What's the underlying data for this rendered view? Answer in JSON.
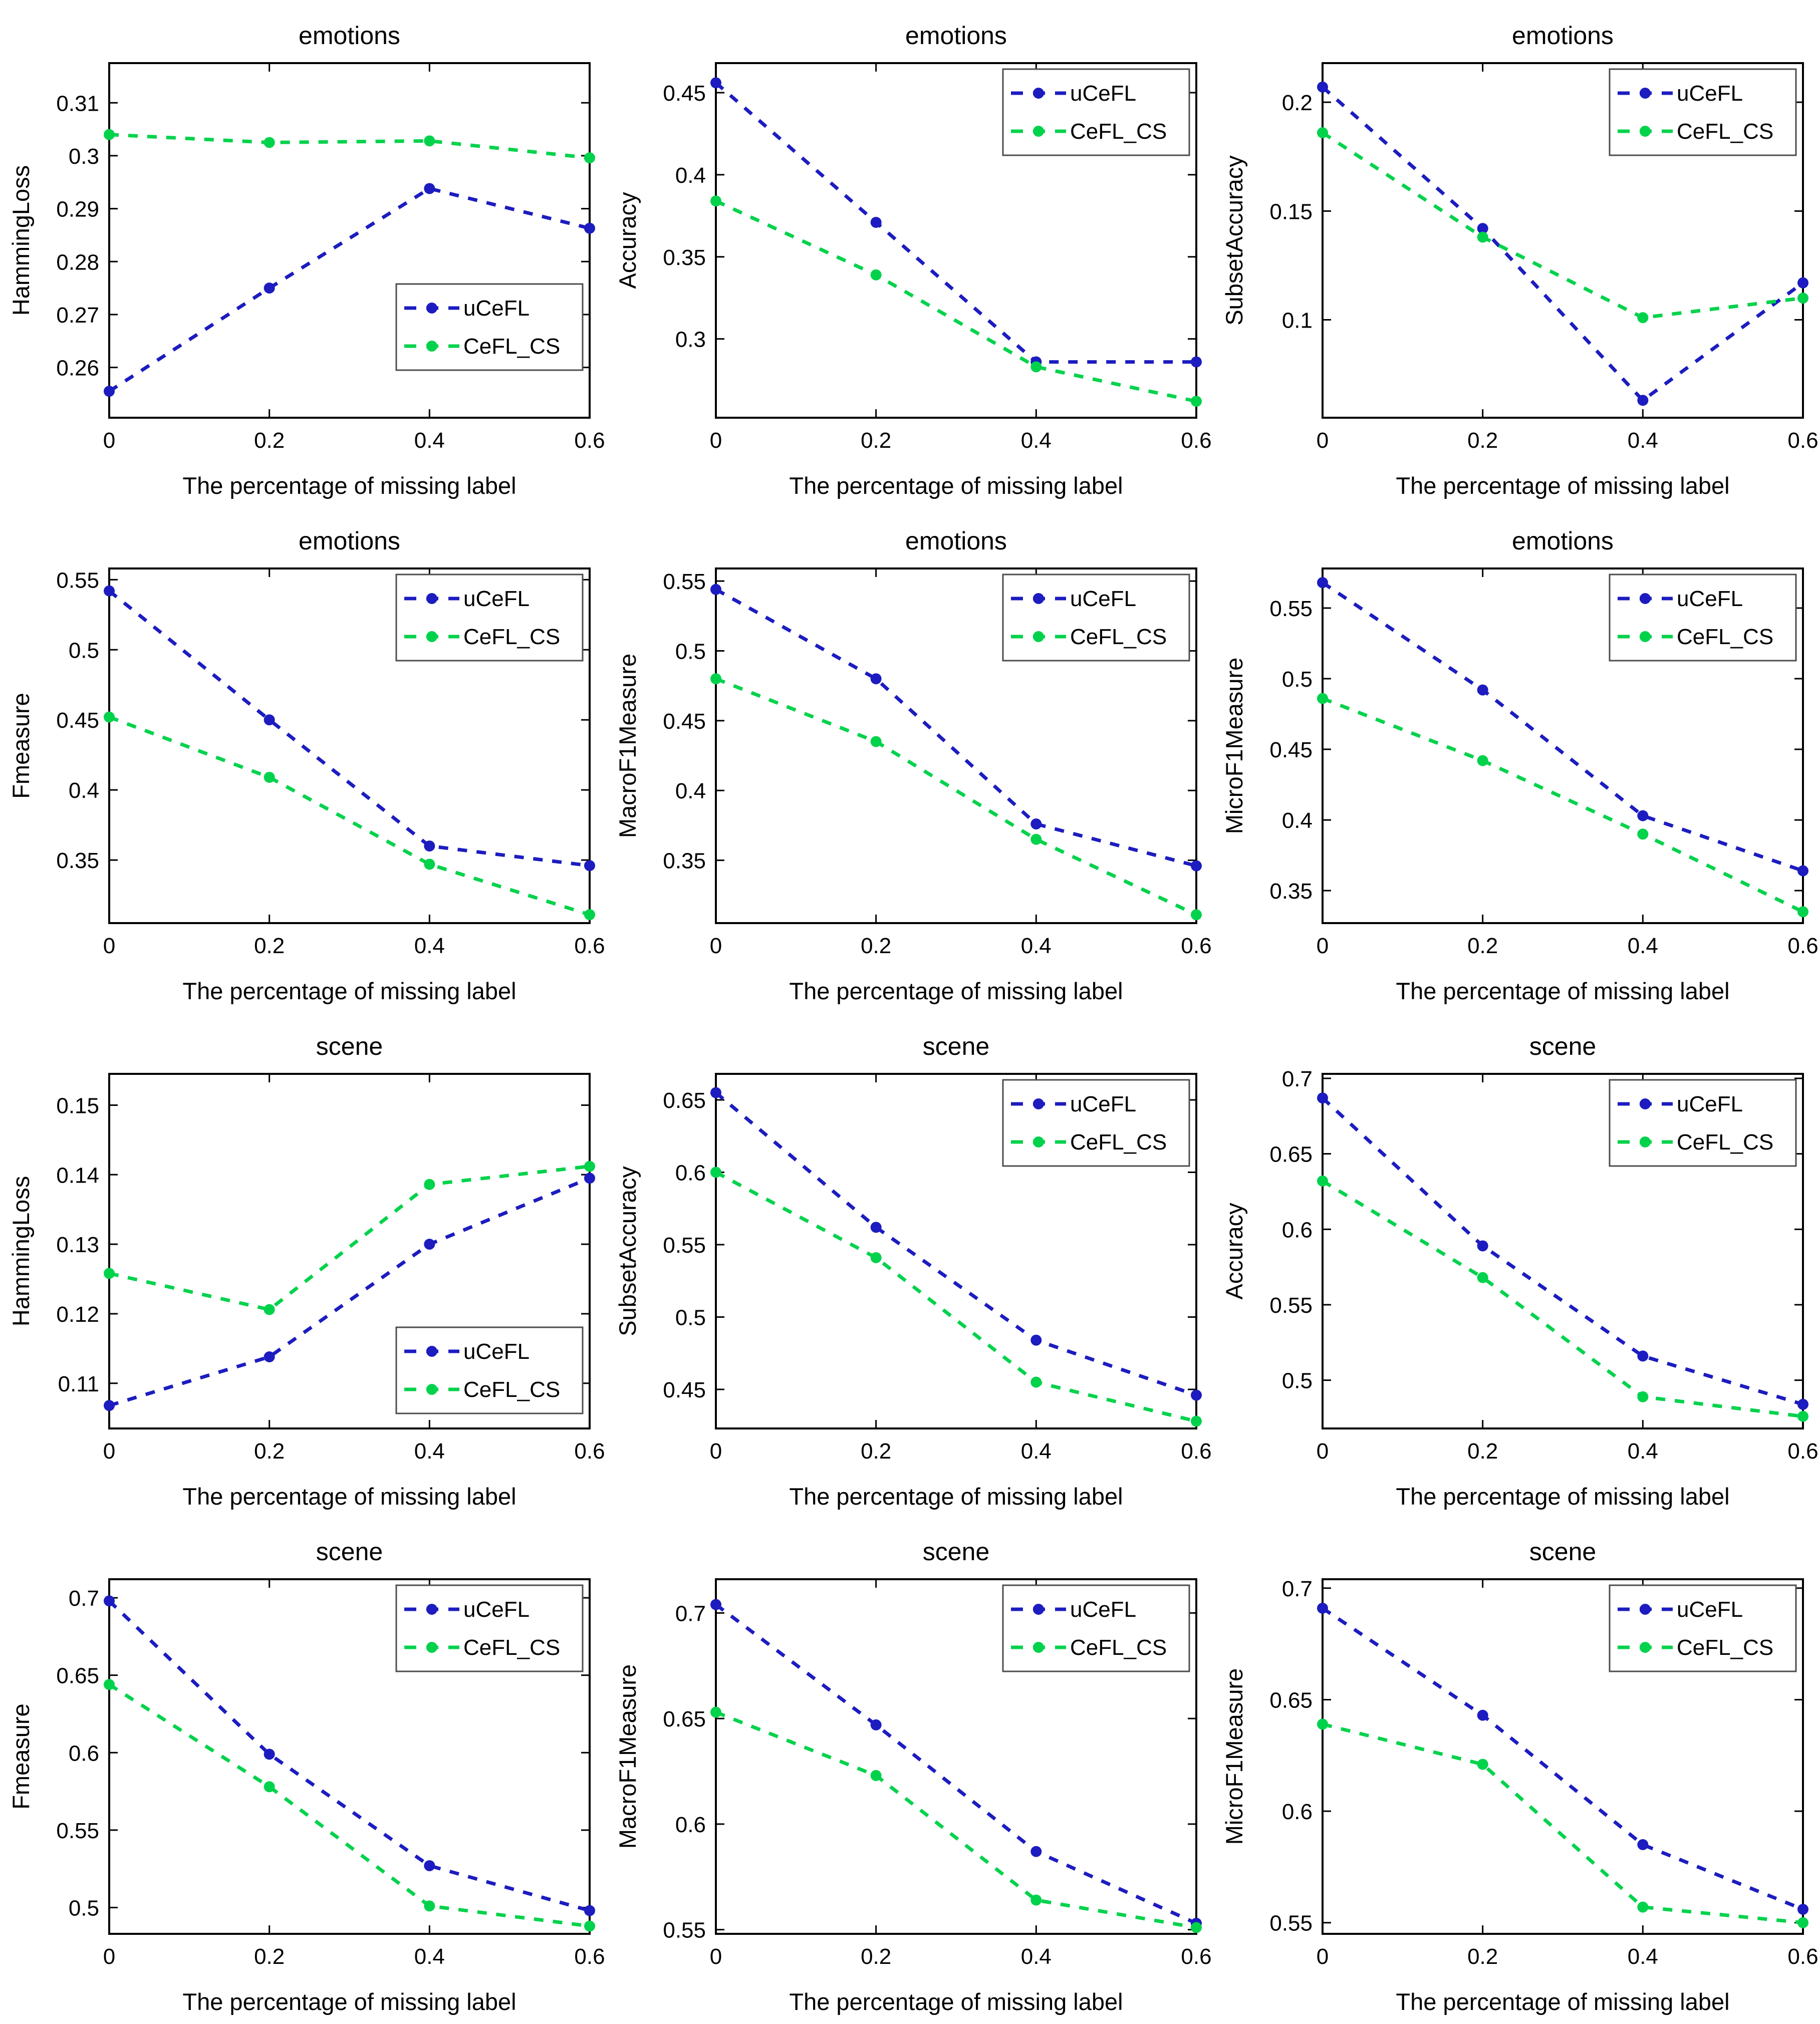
{
  "xlabel": "The percentage of missing label",
  "x": [
    0,
    0.2,
    0.4,
    0.6
  ],
  "xlim": [
    0,
    0.6
  ],
  "xtick_labels": [
    "0",
    "0.2",
    "0.4",
    "0.6"
  ],
  "colors": {
    "uCeFL": "#1c1cc0",
    "CeFL_CS": "#00d24b",
    "axis": "#000000",
    "legend_border": "#4d4d4d",
    "background": "#ffffff"
  },
  "legend_labels": [
    "uCeFL",
    "CeFL_CS"
  ],
  "chart_data": [
    {
      "type": "line",
      "title": "emotions",
      "ylabel": "HammingLoss",
      "legend_pos": "bottom-right",
      "legend_offset_y": 95,
      "grid": false,
      "ylim": [
        0.2505,
        0.3175
      ],
      "yticks": [
        0.26,
        0.27,
        0.28,
        0.29,
        0.3,
        0.31
      ],
      "ytick_labels": [
        "0.26",
        "0.27",
        "0.28",
        "0.29",
        "0.3",
        "0.31"
      ],
      "series": [
        {
          "name": "uCeFL",
          "color": "#1c1cc0",
          "values": [
            0.2555,
            0.275,
            0.2938,
            0.2863
          ]
        },
        {
          "name": "CeFL_CS",
          "color": "#00d24b",
          "values": [
            0.304,
            0.3025,
            0.3028,
            0.2996
          ]
        }
      ]
    },
    {
      "type": "line",
      "title": "emotions",
      "ylabel": "Accuracy",
      "legend_pos": "top-right",
      "legend_offset_y": 12,
      "grid": false,
      "ylim": [
        0.252,
        0.468
      ],
      "yticks": [
        0.3,
        0.35,
        0.4,
        0.45
      ],
      "ytick_labels": [
        "0.3",
        "0.35",
        "0.4",
        "0.45"
      ],
      "series": [
        {
          "name": "uCeFL",
          "color": "#1c1cc0",
          "values": [
            0.456,
            0.371,
            0.286,
            0.286
          ]
        },
        {
          "name": "CeFL_CS",
          "color": "#00d24b",
          "values": [
            0.384,
            0.339,
            0.283,
            0.262
          ]
        }
      ]
    },
    {
      "type": "line",
      "title": "emotions",
      "ylabel": "SubsetAccuracy",
      "legend_pos": "top-right",
      "legend_offset_y": 12,
      "grid": false,
      "ylim": [
        0.055,
        0.218
      ],
      "yticks": [
        0.1,
        0.15,
        0.2
      ],
      "ytick_labels": [
        "0.1",
        "0.15",
        "0.2"
      ],
      "series": [
        {
          "name": "uCeFL",
          "color": "#1c1cc0",
          "values": [
            0.207,
            0.142,
            0.063,
            0.117
          ]
        },
        {
          "name": "CeFL_CS",
          "color": "#00d24b",
          "values": [
            0.186,
            0.138,
            0.101,
            0.11
          ]
        }
      ]
    },
    {
      "type": "line",
      "title": "emotions",
      "ylabel": "Fmeasure",
      "legend_pos": "top-right",
      "legend_offset_y": 12,
      "grid": false,
      "ylim": [
        0.305,
        0.558
      ],
      "yticks": [
        0.35,
        0.4,
        0.45,
        0.5,
        0.55
      ],
      "ytick_labels": [
        "0.35",
        "0.4",
        "0.45",
        "0.5",
        "0.55"
      ],
      "series": [
        {
          "name": "uCeFL",
          "color": "#1c1cc0",
          "values": [
            0.542,
            0.45,
            0.36,
            0.346
          ]
        },
        {
          "name": "CeFL_CS",
          "color": "#00d24b",
          "values": [
            0.452,
            0.409,
            0.347,
            0.311
          ]
        }
      ]
    },
    {
      "type": "line",
      "title": "emotions",
      "ylabel": "MacroF1Measure",
      "legend_pos": "top-right",
      "legend_offset_y": 12,
      "grid": false,
      "ylim": [
        0.305,
        0.559
      ],
      "yticks": [
        0.35,
        0.4,
        0.45,
        0.5,
        0.55
      ],
      "ytick_labels": [
        "0.35",
        "0.4",
        "0.45",
        "0.5",
        "0.55"
      ],
      "series": [
        {
          "name": "uCeFL",
          "color": "#1c1cc0",
          "values": [
            0.544,
            0.48,
            0.376,
            0.346
          ]
        },
        {
          "name": "CeFL_CS",
          "color": "#00d24b",
          "values": [
            0.48,
            0.435,
            0.365,
            0.311
          ]
        }
      ]
    },
    {
      "type": "line",
      "title": "emotions",
      "ylabel": "MicroF1Measure",
      "legend_pos": "top-right",
      "legend_offset_y": 12,
      "grid": false,
      "ylim": [
        0.327,
        0.578
      ],
      "yticks": [
        0.35,
        0.4,
        0.45,
        0.5,
        0.55
      ],
      "ytick_labels": [
        "0.35",
        "0.4",
        "0.45",
        "0.5",
        "0.55"
      ],
      "series": [
        {
          "name": "uCeFL",
          "color": "#1c1cc0",
          "values": [
            0.568,
            0.492,
            0.403,
            0.364
          ]
        },
        {
          "name": "CeFL_CS",
          "color": "#00d24b",
          "values": [
            0.486,
            0.442,
            0.39,
            0.335
          ]
        }
      ]
    },
    {
      "type": "line",
      "title": "scene",
      "ylabel": "HammingLoss",
      "legend_pos": "bottom-right",
      "legend_offset_y": 30,
      "grid": false,
      "ylim": [
        0.1035,
        0.1545
      ],
      "yticks": [
        0.11,
        0.12,
        0.13,
        0.14,
        0.15
      ],
      "ytick_labels": [
        "0.11",
        "0.12",
        "0.13",
        "0.14",
        "0.15"
      ],
      "series": [
        {
          "name": "uCeFL",
          "color": "#1c1cc0",
          "values": [
            0.1068,
            0.1138,
            0.13,
            0.1395
          ]
        },
        {
          "name": "CeFL_CS",
          "color": "#00d24b",
          "values": [
            0.1258,
            0.1206,
            0.1386,
            0.1412
          ]
        }
      ]
    },
    {
      "type": "line",
      "title": "scene",
      "ylabel": "SubsetAccuracy",
      "legend_pos": "top-right",
      "legend_offset_y": 12,
      "grid": false,
      "ylim": [
        0.423,
        0.668
      ],
      "yticks": [
        0.45,
        0.5,
        0.55,
        0.6,
        0.65
      ],
      "ytick_labels": [
        "0.45",
        "0.5",
        "0.55",
        "0.6",
        "0.65"
      ],
      "series": [
        {
          "name": "uCeFL",
          "color": "#1c1cc0",
          "values": [
            0.655,
            0.562,
            0.484,
            0.446
          ]
        },
        {
          "name": "CeFL_CS",
          "color": "#00d24b",
          "values": [
            0.6,
            0.541,
            0.455,
            0.428
          ]
        }
      ]
    },
    {
      "type": "line",
      "title": "scene",
      "ylabel": "Accuracy",
      "legend_pos": "top-right",
      "legend_offset_y": 12,
      "grid": false,
      "ylim": [
        0.468,
        0.703
      ],
      "yticks": [
        0.5,
        0.55,
        0.6,
        0.65,
        0.7
      ],
      "ytick_labels": [
        "0.5",
        "0.55",
        "0.6",
        "0.65",
        "0.7"
      ],
      "series": [
        {
          "name": "uCeFL",
          "color": "#1c1cc0",
          "values": [
            0.687,
            0.589,
            0.516,
            0.484
          ]
        },
        {
          "name": "CeFL_CS",
          "color": "#00d24b",
          "values": [
            0.632,
            0.568,
            0.489,
            0.476
          ]
        }
      ]
    },
    {
      "type": "line",
      "title": "scene",
      "ylabel": "Fmeasure",
      "legend_pos": "top-right",
      "legend_offset_y": 12,
      "grid": false,
      "ylim": [
        0.483,
        0.712
      ],
      "yticks": [
        0.5,
        0.55,
        0.6,
        0.65,
        0.7
      ],
      "ytick_labels": [
        "0.5",
        "0.55",
        "0.6",
        "0.65",
        "0.7"
      ],
      "series": [
        {
          "name": "uCeFL",
          "color": "#1c1cc0",
          "values": [
            0.698,
            0.599,
            0.527,
            0.498
          ]
        },
        {
          "name": "CeFL_CS",
          "color": "#00d24b",
          "values": [
            0.644,
            0.578,
            0.501,
            0.488
          ]
        }
      ]
    },
    {
      "type": "line",
      "title": "scene",
      "ylabel": "MacroF1Measure",
      "legend_pos": "top-right",
      "legend_offset_y": 12,
      "grid": false,
      "ylim": [
        0.548,
        0.716
      ],
      "yticks": [
        0.55,
        0.6,
        0.65,
        0.7
      ],
      "ytick_labels": [
        "0.55",
        "0.6",
        "0.65",
        "0.7"
      ],
      "series": [
        {
          "name": "uCeFL",
          "color": "#1c1cc0",
          "values": [
            0.704,
            0.647,
            0.587,
            0.553
          ]
        },
        {
          "name": "CeFL_CS",
          "color": "#00d24b",
          "values": [
            0.653,
            0.623,
            0.564,
            0.551
          ]
        }
      ]
    },
    {
      "type": "line",
      "title": "scene",
      "ylabel": "MicroF1Measure",
      "legend_pos": "top-right",
      "legend_offset_y": 12,
      "grid": false,
      "ylim": [
        0.545,
        0.704
      ],
      "yticks": [
        0.55,
        0.6,
        0.65,
        0.7
      ],
      "ytick_labels": [
        "0.55",
        "0.6",
        "0.65",
        "0.7"
      ],
      "series": [
        {
          "name": "uCeFL",
          "color": "#1c1cc0",
          "values": [
            0.691,
            0.643,
            0.585,
            0.556
          ]
        },
        {
          "name": "CeFL_CS",
          "color": "#00d24b",
          "values": [
            0.639,
            0.621,
            0.557,
            0.55
          ]
        }
      ]
    }
  ]
}
